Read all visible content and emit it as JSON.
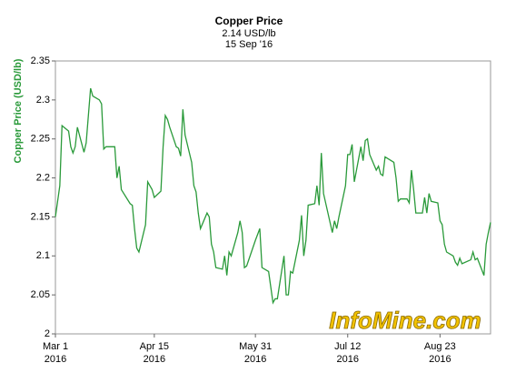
{
  "chart_data": {
    "type": "line",
    "title": "Copper Price",
    "subtitle": "2.14 USD/lb",
    "date_label": "15 Sep '16",
    "y_label": "Copper Price (USD/lb)",
    "watermark": "InfoMine.com",
    "x": [
      "2016-03-01",
      "2016-03-02",
      "2016-03-03",
      "2016-03-04",
      "2016-03-07",
      "2016-03-08",
      "2016-03-09",
      "2016-03-10",
      "2016-03-11",
      "2016-03-14",
      "2016-03-15",
      "2016-03-16",
      "2016-03-17",
      "2016-03-18",
      "2016-03-21",
      "2016-03-22",
      "2016-03-23",
      "2016-03-24",
      "2016-03-28",
      "2016-03-29",
      "2016-03-30",
      "2016-03-31",
      "2016-04-04",
      "2016-04-05",
      "2016-04-06",
      "2016-04-07",
      "2016-04-08",
      "2016-04-11",
      "2016-04-12",
      "2016-04-13",
      "2016-04-14",
      "2016-04-15",
      "2016-04-18",
      "2016-04-19",
      "2016-04-20",
      "2016-04-21",
      "2016-04-22",
      "2016-04-25",
      "2016-04-26",
      "2016-04-27",
      "2016-04-28",
      "2016-04-29",
      "2016-05-02",
      "2016-05-03",
      "2016-05-04",
      "2016-05-05",
      "2016-05-06",
      "2016-05-09",
      "2016-05-10",
      "2016-05-11",
      "2016-05-12",
      "2016-05-13",
      "2016-05-16",
      "2016-05-17",
      "2016-05-18",
      "2016-05-19",
      "2016-05-20",
      "2016-05-23",
      "2016-05-24",
      "2016-05-25",
      "2016-05-26",
      "2016-05-27",
      "2016-05-31",
      "2016-06-02",
      "2016-06-03",
      "2016-06-06",
      "2016-06-07",
      "2016-06-08",
      "2016-06-09",
      "2016-06-10",
      "2016-06-13",
      "2016-06-14",
      "2016-06-15",
      "2016-06-16",
      "2016-06-17",
      "2016-06-20",
      "2016-06-21",
      "2016-06-22",
      "2016-06-23",
      "2016-06-24",
      "2016-06-27",
      "2016-06-28",
      "2016-06-29",
      "2016-06-30",
      "2016-07-01",
      "2016-07-05",
      "2016-07-06",
      "2016-07-07",
      "2016-07-08",
      "2016-07-11",
      "2016-07-12",
      "2016-07-13",
      "2016-07-14",
      "2016-07-15",
      "2016-07-18",
      "2016-07-19",
      "2016-07-20",
      "2016-07-21",
      "2016-07-22",
      "2016-07-25",
      "2016-07-26",
      "2016-07-27",
      "2016-07-28",
      "2016-07-29",
      "2016-08-02",
      "2016-08-03",
      "2016-08-04",
      "2016-08-05",
      "2016-08-08",
      "2016-08-09",
      "2016-08-10",
      "2016-08-11",
      "2016-08-12",
      "2016-08-15",
      "2016-08-16",
      "2016-08-17",
      "2016-08-18",
      "2016-08-19",
      "2016-08-22",
      "2016-08-23",
      "2016-08-24",
      "2016-08-25",
      "2016-08-26",
      "2016-08-29",
      "2016-08-30",
      "2016-08-31",
      "2016-09-01",
      "2016-09-02",
      "2016-09-06",
      "2016-09-07",
      "2016-09-08",
      "2016-09-09",
      "2016-09-12",
      "2016-09-13",
      "2016-09-14",
      "2016-09-15"
    ],
    "series": [
      {
        "name": "Copper Price",
        "color": "#2a9a3a",
        "values": [
          2.15,
          2.17,
          2.19,
          2.267,
          2.26,
          2.24,
          2.232,
          2.24,
          2.265,
          2.233,
          2.245,
          2.28,
          2.315,
          2.305,
          2.3,
          2.295,
          2.237,
          2.24,
          2.24,
          2.2,
          2.215,
          2.185,
          2.167,
          2.165,
          2.135,
          2.11,
          2.105,
          2.14,
          2.195,
          2.19,
          2.185,
          2.175,
          2.183,
          2.24,
          2.28,
          2.275,
          2.265,
          2.24,
          2.238,
          2.228,
          2.288,
          2.255,
          2.22,
          2.19,
          2.182,
          2.155,
          2.135,
          2.155,
          2.15,
          2.115,
          2.105,
          2.085,
          2.083,
          2.1,
          2.075,
          2.105,
          2.1,
          2.13,
          2.145,
          2.13,
          2.085,
          2.087,
          2.12,
          2.135,
          2.085,
          2.08,
          2.06,
          2.04,
          2.045,
          2.045,
          2.1,
          2.05,
          2.05,
          2.08,
          2.078,
          2.12,
          2.152,
          2.1,
          2.12,
          2.165,
          2.167,
          2.19,
          2.165,
          2.232,
          2.18,
          2.13,
          2.145,
          2.135,
          2.15,
          2.19,
          2.23,
          2.23,
          2.243,
          2.195,
          2.24,
          2.222,
          2.248,
          2.25,
          2.23,
          2.21,
          2.215,
          2.205,
          2.203,
          2.227,
          2.22,
          2.2,
          2.17,
          2.173,
          2.173,
          2.168,
          2.21,
          2.185,
          2.155,
          2.155,
          2.175,
          2.155,
          2.18,
          2.17,
          2.168,
          2.145,
          2.14,
          2.115,
          2.105,
          2.1,
          2.092,
          2.088,
          2.097,
          2.09,
          2.095,
          2.105,
          2.095,
          2.097,
          2.075,
          2.115,
          2.13,
          2.143
        ]
      }
    ],
    "xlim": [
      "2016-03-01",
      "2016-09-15"
    ],
    "xticks": [
      {
        "value": "2016-03-01",
        "label": [
          "Mar 1",
          "2016"
        ]
      },
      {
        "value": "2016-04-15",
        "label": [
          "Apr 15",
          "2016"
        ]
      },
      {
        "value": "2016-05-31",
        "label": [
          "May 31",
          "2016"
        ]
      },
      {
        "value": "2016-07-12",
        "label": [
          "Jul 12",
          "2016"
        ]
      },
      {
        "value": "2016-08-23",
        "label": [
          "Aug 23",
          "2016"
        ]
      }
    ],
    "ylim": [
      2,
      2.35
    ],
    "yticks": [
      2,
      2.05,
      2.1,
      2.15,
      2.2,
      2.25,
      2.3,
      2.35
    ],
    "grid": false
  }
}
